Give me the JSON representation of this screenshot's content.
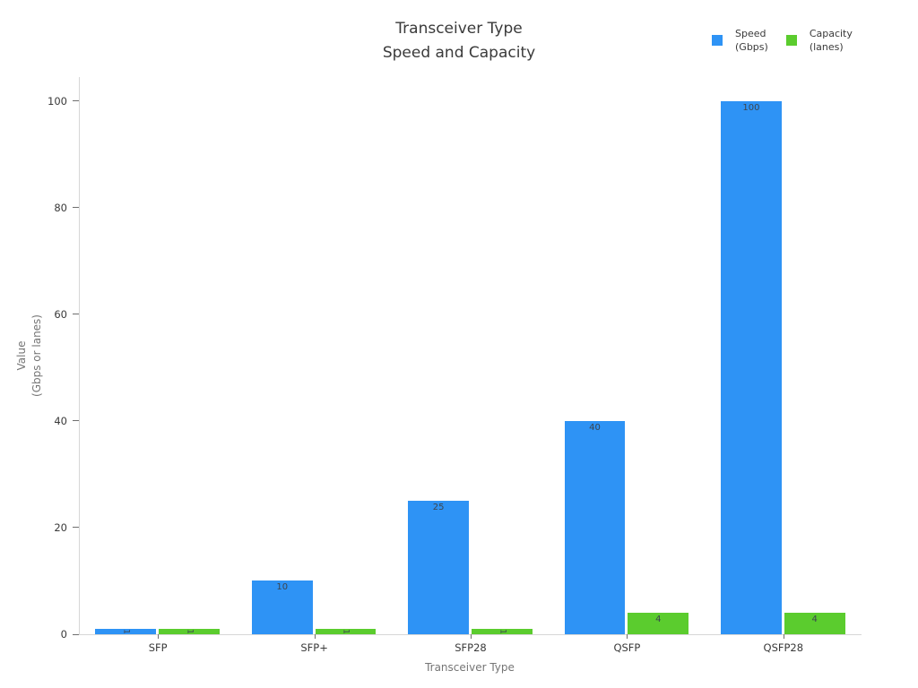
{
  "legend": {
    "items": [
      {
        "label": "Speed\n(Gbps)",
        "color": "#2e93f5"
      },
      {
        "label": "Capacity\n(lanes)",
        "color": "#5bcc2e"
      }
    ]
  },
  "chart_data": {
    "type": "bar",
    "title": "Transceiver Type\nSpeed and Capacity",
    "xlabel": "Transceiver Type",
    "ylabel": "Value\n(Gbps or lanes)",
    "categories": [
      "SFP",
      "SFP+",
      "SFP28",
      "QSFP",
      "QSFP28"
    ],
    "series": [
      {
        "name": "Speed (Gbps)",
        "color": "#2e93f5",
        "values": [
          1,
          10,
          25,
          40,
          100
        ]
      },
      {
        "name": "Capacity (lanes)",
        "color": "#5bcc2e",
        "values": [
          1,
          1,
          1,
          4,
          4
        ]
      }
    ],
    "y_ticks": [
      0,
      20,
      40,
      60,
      80,
      100
    ],
    "ylim": [
      0,
      104.5
    ],
    "grid": false,
    "legend_position": "top-right",
    "bar_value_labels": true
  }
}
